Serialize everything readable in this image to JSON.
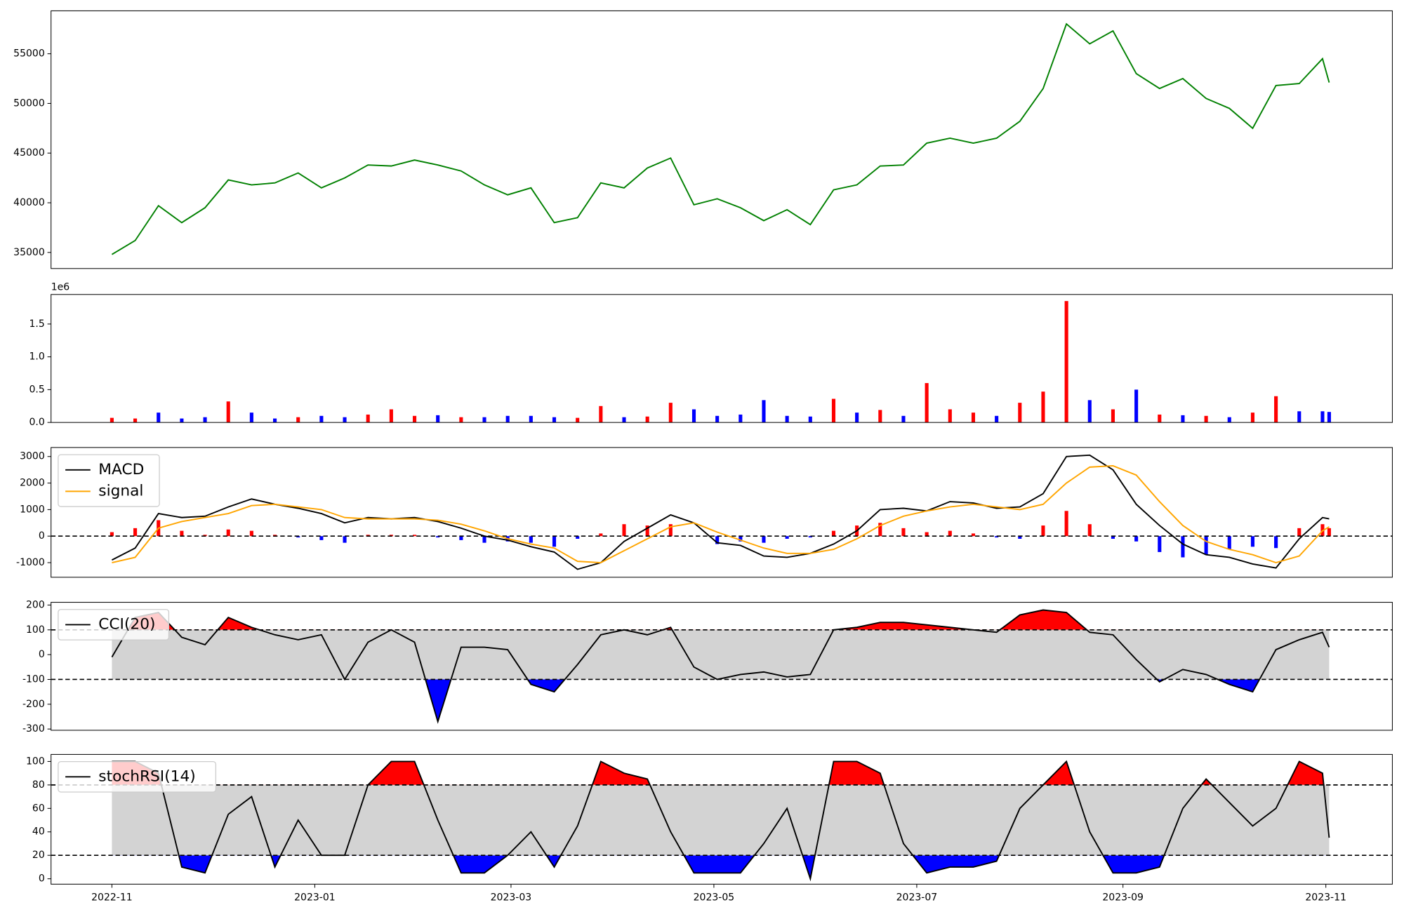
{
  "chart_data": [
    {
      "type": "line",
      "sharex": true,
      "ylim": [
        33380,
        59320
      ],
      "yticks": [
        35000,
        40000,
        45000,
        50000,
        55000
      ],
      "series": [
        {
          "color": "#008000",
          "values": [
            34800,
            36200,
            39700,
            38000,
            39500,
            42300,
            41800,
            42000,
            43000,
            41500,
            42500,
            43800,
            43700,
            44300,
            43800,
            43200,
            41800,
            40800,
            41500,
            38000,
            38500,
            42000,
            41500,
            43500,
            44500,
            39800,
            40400,
            39500,
            38200,
            39300,
            37800,
            41300,
            41800,
            43700,
            43800,
            46000,
            46500,
            46000,
            46500,
            48200,
            51500,
            58000,
            56000,
            57300,
            53000,
            51500,
            52500,
            50500,
            49500,
            47500,
            51800,
            52000,
            54500,
            52100
          ]
        }
      ]
    },
    {
      "type": "bar",
      "sharex": true,
      "offset_text": "1e6",
      "ylim": [
        0,
        1950000
      ],
      "yticks": [
        {
          "value": 0,
          "label": "0.0"
        },
        {
          "value": 500000,
          "label": "0.5"
        },
        {
          "value": 1000000,
          "label": "1.0"
        },
        {
          "value": 1500000,
          "label": "1.5"
        }
      ],
      "series": [
        {
          "values": [
            70000,
            60000,
            150000,
            60000,
            80000,
            320000,
            150000,
            60000,
            80000,
            100000,
            80000,
            120000,
            200000,
            100000,
            110000,
            80000,
            80000,
            100000,
            100000,
            80000,
            70000,
            250000,
            80000,
            90000,
            300000,
            200000,
            100000,
            120000,
            340000,
            100000,
            90000,
            360000,
            150000,
            190000,
            100000,
            600000,
            200000,
            150000,
            100000,
            300000,
            470000,
            1850000,
            340000,
            200000,
            500000,
            120000,
            110000,
            100000,
            80000,
            150000,
            400000,
            170000,
            170000,
            160000
          ],
          "colors": [
            "red",
            "red",
            "blue",
            "blue",
            "blue",
            "red",
            "blue",
            "blue",
            "red",
            "blue",
            "blue",
            "red",
            "red",
            "red",
            "blue",
            "red",
            "blue",
            "blue",
            "blue",
            "blue",
            "red",
            "red",
            "blue",
            "red",
            "red",
            "blue",
            "blue",
            "blue",
            "blue",
            "blue",
            "blue",
            "red",
            "blue",
            "red",
            "blue",
            "red",
            "red",
            "red",
            "blue",
            "red",
            "red",
            "red",
            "blue",
            "red",
            "blue",
            "red",
            "blue",
            "red",
            "blue",
            "red",
            "red",
            "blue",
            "blue",
            "blue"
          ]
        }
      ]
    },
    {
      "type": "macd",
      "sharex": true,
      "legend": "upper left",
      "hline": 0,
      "ylim": [
        -1550,
        3340
      ],
      "yticks": [
        -1000,
        0,
        1000,
        2000,
        3000
      ],
      "series": [
        {
          "name": "MACD",
          "style": "line",
          "color": "#000000",
          "values": [
            -900,
            -450,
            850,
            700,
            750,
            1100,
            1400,
            1200,
            1050,
            850,
            500,
            700,
            650,
            700,
            550,
            300,
            0,
            -150,
            -400,
            -600,
            -1250,
            -1000,
            -200,
            300,
            800,
            500,
            -250,
            -350,
            -750,
            -800,
            -650,
            -300,
            200,
            1000,
            1050,
            950,
            1300,
            1250,
            1050,
            1100,
            1600,
            3000,
            3050,
            2500,
            1200,
            400,
            -300,
            -700,
            -800,
            -1050,
            -1200,
            -100,
            700,
            650
          ]
        },
        {
          "name": "signal",
          "style": "line",
          "color": "#ffa500",
          "values": [
            -1000,
            -800,
            300,
            550,
            700,
            850,
            1150,
            1200,
            1100,
            1000,
            700,
            650,
            650,
            650,
            600,
            450,
            200,
            -100,
            -300,
            -450,
            -950,
            -1000,
            -550,
            -100,
            350,
            500,
            150,
            -150,
            -450,
            -650,
            -650,
            -500,
            -100,
            400,
            750,
            950,
            1100,
            1200,
            1100,
            1000,
            1200,
            2000,
            2600,
            2650,
            2300,
            1300,
            400,
            -200,
            -500,
            -700,
            -1000,
            -750,
            200,
            350
          ]
        },
        {
          "style": "bar",
          "up_color": "red",
          "down_color": "blue",
          "values": [
            150,
            300,
            600,
            200,
            50,
            250,
            200,
            50,
            -50,
            -150,
            -250,
            50,
            50,
            50,
            -50,
            -150,
            -250,
            -200,
            -250,
            -400,
            -100,
            100,
            450,
            400,
            450,
            0,
            -300,
            -200,
            -250,
            -100,
            -50,
            200,
            400,
            500,
            300,
            150,
            200,
            100,
            -50,
            -100,
            400,
            950,
            450,
            -100,
            -200,
            -600,
            -800,
            -700,
            -500,
            -400,
            -450,
            300,
            450,
            300
          ]
        }
      ]
    },
    {
      "type": "band",
      "sharex": true,
      "legend": "upper left",
      "thresholds": [
        -100,
        100
      ],
      "band_color": "#d3d3d3",
      "upper_color": "red",
      "lower_color": "blue",
      "ylim": [
        -305,
        211
      ],
      "yticks": [
        -300,
        -200,
        -100,
        0,
        100,
        200
      ],
      "series": [
        {
          "name": "CCI(20)",
          "color": "#000000",
          "values": [
            -10,
            150,
            170,
            70,
            40,
            150,
            110,
            80,
            60,
            80,
            -100,
            50,
            100,
            50,
            -270,
            30,
            30,
            20,
            -120,
            -150,
            -40,
            80,
            100,
            80,
            110,
            -50,
            -100,
            -80,
            -70,
            -90,
            -80,
            100,
            110,
            130,
            130,
            120,
            110,
            100,
            90,
            160,
            180,
            170,
            90,
            80,
            -20,
            -110,
            -60,
            -80,
            -120,
            -150,
            20,
            60,
            90,
            30
          ]
        }
      ]
    },
    {
      "type": "band",
      "legend": "upper left",
      "thresholds": [
        20,
        80
      ],
      "band_color": "#d3d3d3",
      "upper_color": "red",
      "lower_color": "blue",
      "ylim": [
        -4.6,
        106
      ],
      "yticks": [
        0,
        20,
        40,
        60,
        80,
        100
      ],
      "x": [
        0,
        7,
        14,
        21,
        28,
        35,
        42,
        49,
        56,
        63,
        70,
        77,
        84,
        91,
        98,
        105,
        112,
        119,
        126,
        133,
        140,
        147,
        154,
        161,
        168,
        175,
        182,
        189,
        196,
        203,
        210,
        217,
        224,
        231,
        238,
        245,
        252,
        259,
        266,
        273,
        280,
        287,
        294,
        301,
        308,
        315,
        322,
        329,
        336,
        343,
        350,
        357,
        364,
        366
      ],
      "xlim": [
        -18.3,
        385
      ],
      "xticks": [
        {
          "value": 0,
          "label": "2022-11"
        },
        {
          "value": 61,
          "label": "2023-01"
        },
        {
          "value": 120,
          "label": "2023-03"
        },
        {
          "value": 181,
          "label": "2023-05"
        },
        {
          "value": 242,
          "label": "2023-07"
        },
        {
          "value": 304,
          "label": "2023-09"
        },
        {
          "value": 365,
          "label": "2023-11"
        }
      ],
      "series": [
        {
          "name": "stochRSI(14)",
          "color": "#000000",
          "values": [
            100,
            100,
            90,
            10,
            5,
            55,
            70,
            10,
            50,
            20,
            20,
            80,
            100,
            100,
            50,
            5,
            5,
            20,
            40,
            10,
            45,
            100,
            90,
            85,
            40,
            5,
            5,
            5,
            30,
            60,
            0,
            100,
            100,
            90,
            30,
            5,
            10,
            10,
            15,
            60,
            80,
            100,
            40,
            5,
            5,
            10,
            60,
            85,
            65,
            45,
            60,
            100,
            90,
            35
          ]
        }
      ]
    }
  ]
}
